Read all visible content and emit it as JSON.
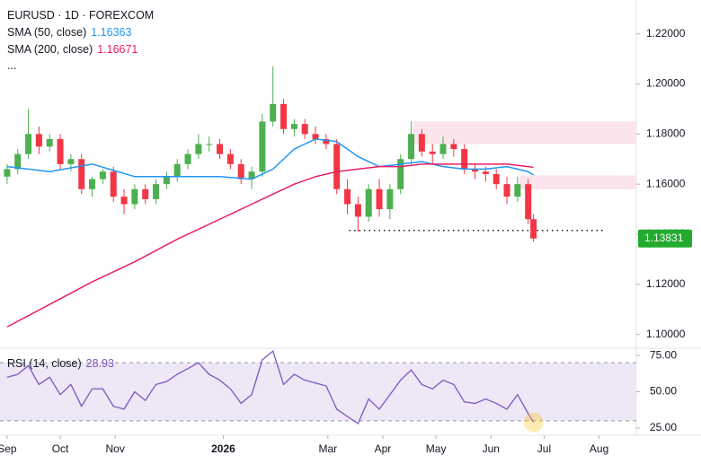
{
  "chart_data": [
    {
      "type": "candlestick",
      "title": "EURUSD · 1D · FOREXCOM",
      "more": "...",
      "x": [
        0,
        6,
        12,
        18,
        24,
        30,
        36,
        42,
        48,
        54,
        60,
        66,
        72,
        78,
        84,
        90,
        96,
        102,
        108,
        114,
        120,
        126,
        132,
        138,
        144,
        150,
        156,
        162,
        168,
        174,
        180,
        186,
        192,
        198,
        204,
        210,
        216,
        222,
        228,
        234,
        240,
        246,
        252,
        258,
        264,
        270,
        276,
        282,
        288,
        294,
        297
      ],
      "open": [
        1.163,
        1.166,
        1.172,
        1.18,
        1.175,
        1.178,
        1.168,
        1.17,
        1.158,
        1.162,
        1.165,
        1.155,
        1.152,
        1.158,
        1.154,
        1.16,
        1.163,
        1.168,
        1.172,
        1.176,
        1.176,
        1.172,
        1.168,
        1.162,
        1.165,
        1.185,
        1.192,
        1.182,
        1.184,
        1.18,
        1.178,
        1.176,
        1.158,
        1.152,
        1.147,
        1.158,
        1.15,
        1.158,
        1.17,
        1.18,
        1.173,
        1.172,
        1.176,
        1.174,
        1.166,
        1.165,
        1.164,
        1.16,
        1.155,
        1.16,
        1.146
      ],
      "high": [
        1.168,
        1.174,
        1.19,
        1.183,
        1.18,
        1.18,
        1.172,
        1.172,
        1.163,
        1.166,
        1.167,
        1.158,
        1.16,
        1.16,
        1.162,
        1.165,
        1.17,
        1.174,
        1.18,
        1.179,
        1.178,
        1.174,
        1.17,
        1.167,
        1.188,
        1.207,
        1.194,
        1.186,
        1.186,
        1.183,
        1.18,
        1.178,
        1.162,
        1.155,
        1.16,
        1.162,
        1.16,
        1.172,
        1.185,
        1.182,
        1.176,
        1.179,
        1.178,
        1.176,
        1.168,
        1.167,
        1.166,
        1.163,
        1.163,
        1.162,
        1.148
      ],
      "low": [
        1.16,
        1.164,
        1.17,
        1.172,
        1.173,
        1.166,
        1.165,
        1.156,
        1.155,
        1.16,
        1.153,
        1.148,
        1.15,
        1.152,
        1.152,
        1.158,
        1.161,
        1.166,
        1.17,
        1.173,
        1.17,
        1.166,
        1.16,
        1.158,
        1.163,
        1.183,
        1.18,
        1.179,
        1.178,
        1.176,
        1.174,
        1.156,
        1.148,
        1.141,
        1.145,
        1.147,
        1.146,
        1.156,
        1.168,
        1.171,
        1.168,
        1.17,
        1.171,
        1.164,
        1.162,
        1.161,
        1.158,
        1.152,
        1.153,
        1.144,
        1.137
      ],
      "close": [
        1.166,
        1.172,
        1.18,
        1.175,
        1.178,
        1.168,
        1.17,
        1.158,
        1.162,
        1.165,
        1.155,
        1.152,
        1.158,
        1.154,
        1.16,
        1.163,
        1.168,
        1.172,
        1.176,
        1.176,
        1.172,
        1.168,
        1.162,
        1.165,
        1.185,
        1.192,
        1.182,
        1.184,
        1.18,
        1.178,
        1.176,
        1.158,
        1.152,
        1.147,
        1.158,
        1.15,
        1.158,
        1.17,
        1.18,
        1.173,
        1.172,
        1.176,
        1.174,
        1.166,
        1.165,
        1.164,
        1.16,
        1.155,
        1.16,
        1.146,
        1.13831
      ],
      "up_color": "#4caf50",
      "down_color": "#f23645",
      "series": [
        {
          "name": "SMA (50, close)",
          "color": "#2196f3",
          "x": [
            0,
            24,
            48,
            72,
            96,
            120,
            138,
            150,
            162,
            174,
            186,
            198,
            210,
            222,
            234,
            246,
            258,
            270,
            282,
            294,
            297
          ],
          "values": [
            1.167,
            1.165,
            1.168,
            1.163,
            1.163,
            1.163,
            1.162,
            1.166,
            1.174,
            1.178,
            1.177,
            1.171,
            1.167,
            1.168,
            1.169,
            1.167,
            1.166,
            1.166,
            1.167,
            1.165,
            1.16363
          ]
        },
        {
          "name": "SMA (200, close)",
          "color": "#e91e63",
          "x": [
            0,
            24,
            48,
            72,
            96,
            120,
            138,
            150,
            162,
            174,
            186,
            198,
            210,
            222,
            234,
            246,
            258,
            270,
            282,
            294,
            297
          ],
          "values": [
            1.103,
            1.112,
            1.121,
            1.129,
            1.138,
            1.146,
            1.152,
            1.156,
            1.16,
            1.163,
            1.165,
            1.166,
            1.167,
            1.167,
            1.168,
            1.168,
            1.168,
            1.168,
            1.168,
            1.167,
            1.16671
          ]
        }
      ],
      "zones": [
        {
          "x": [
            229,
            355
          ],
          "y": [
            1.176,
            1.185
          ],
          "color": "#fce4ec"
        },
        {
          "x": [
            289,
            355
          ],
          "y": [
            1.158,
            1.1635
          ],
          "color": "#fce4ec"
        }
      ],
      "level": {
        "x": [
          193,
          337
        ],
        "y": 1.1415
      },
      "price_label_color": "#22ab2e",
      "xlim": [
        -4,
        355
      ],
      "ylim": [
        1.0945,
        1.2335
      ],
      "yticks": [
        {
          "value": 1.1,
          "label": "1.10000"
        },
        {
          "value": 1.12,
          "label": "1.12000"
        },
        {
          "value": 1.14,
          "label": "1.14000"
        },
        {
          "value": 1.16,
          "label": "1.16000"
        },
        {
          "value": 1.18,
          "label": "1.18000"
        },
        {
          "value": 1.2,
          "label": "1.20000"
        },
        {
          "value": 1.22,
          "label": "1.22000"
        }
      ],
      "xticks": [
        {
          "value": 0,
          "label": "Sep"
        },
        {
          "value": 30,
          "label": "Oct"
        },
        {
          "value": 61,
          "label": "Nov"
        },
        {
          "value": 122,
          "label": "2026"
        },
        {
          "value": 181,
          "label": "Mar"
        },
        {
          "value": 212,
          "label": "Apr"
        },
        {
          "value": 242,
          "label": "May"
        },
        {
          "value": 273,
          "label": "Jun"
        },
        {
          "value": 303,
          "label": "Jul"
        },
        {
          "value": 334,
          "label": "Aug"
        }
      ],
      "grid": false
    },
    {
      "type": "line",
      "title": "RSI (14, close)",
      "x": [
        0,
        6,
        12,
        18,
        24,
        30,
        36,
        42,
        48,
        54,
        60,
        66,
        72,
        78,
        84,
        90,
        96,
        102,
        108,
        114,
        120,
        126,
        132,
        138,
        144,
        150,
        156,
        162,
        168,
        174,
        180,
        186,
        192,
        198,
        204,
        210,
        216,
        222,
        228,
        234,
        240,
        246,
        252,
        258,
        264,
        270,
        276,
        282,
        288,
        294,
        297
      ],
      "series": [
        {
          "name": "RSI",
          "color": "#7e57c2",
          "values": [
            60,
            62,
            68,
            55,
            60,
            48,
            55,
            40,
            52,
            52,
            40,
            38,
            50,
            44,
            55,
            57,
            62,
            66,
            70,
            62,
            58,
            52,
            42,
            48,
            72,
            78,
            55,
            62,
            58,
            56,
            54,
            38,
            33,
            28,
            45,
            38,
            48,
            58,
            65,
            55,
            52,
            58,
            55,
            43,
            42,
            45,
            42,
            38,
            48,
            35,
            28.93
          ]
        }
      ],
      "band": [
        30,
        70
      ],
      "band_color": "#ede7f6",
      "xlim": [
        -4,
        355
      ],
      "ylim": [
        20,
        80
      ],
      "yticks": [
        {
          "value": 25,
          "label": "25.00"
        },
        {
          "value": 50,
          "label": "50.00"
        },
        {
          "value": 75,
          "label": "75.00"
        }
      ]
    }
  ]
}
